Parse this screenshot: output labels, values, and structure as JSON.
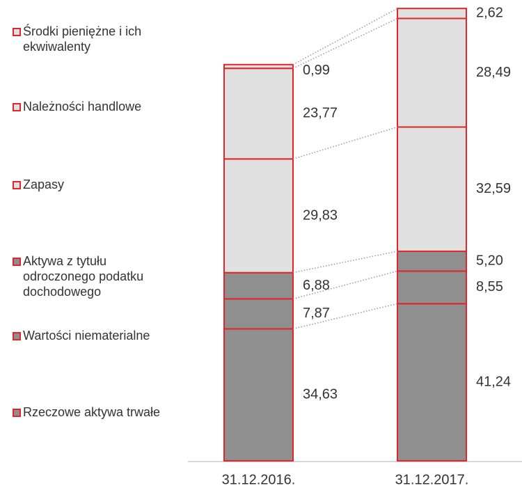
{
  "chart_data": {
    "type": "stacked_bar",
    "categories": [
      "31.12.2016.",
      "31.12.2017."
    ],
    "border_color": "#e0262b",
    "series": [
      {
        "name": "Rzeczowe aktywa trwałe",
        "color": "#8f8f8f",
        "values": [
          34.63,
          41.24
        ],
        "value_labels": [
          "34,63",
          "41,24"
        ]
      },
      {
        "name": "Wartości niematerialne",
        "color": "#8f8f8f",
        "values": [
          7.87,
          8.55
        ],
        "value_labels": [
          "7,87",
          "8,55"
        ]
      },
      {
        "name": "Aktywa z tytułu odroczonego podatku dochodowego",
        "color": "#8f8f8f",
        "values": [
          6.88,
          5.2
        ],
        "value_labels": [
          "6,88",
          "5,20"
        ]
      },
      {
        "name": "Zapasy",
        "color": "#e0e0e0",
        "values": [
          29.83,
          32.59
        ],
        "value_labels": [
          "29,83",
          "32,59"
        ]
      },
      {
        "name": "Należności handlowe",
        "color": "#e0e0e0",
        "values": [
          23.77,
          28.49
        ],
        "value_labels": [
          "23,77",
          "28,49"
        ]
      },
      {
        "name": "Środki pieniężne i ich ekwiwalenty",
        "color": "#e0e0e0",
        "values": [
          0.99,
          2.62
        ],
        "value_labels": [
          "0,99",
          "2,62"
        ]
      }
    ]
  }
}
